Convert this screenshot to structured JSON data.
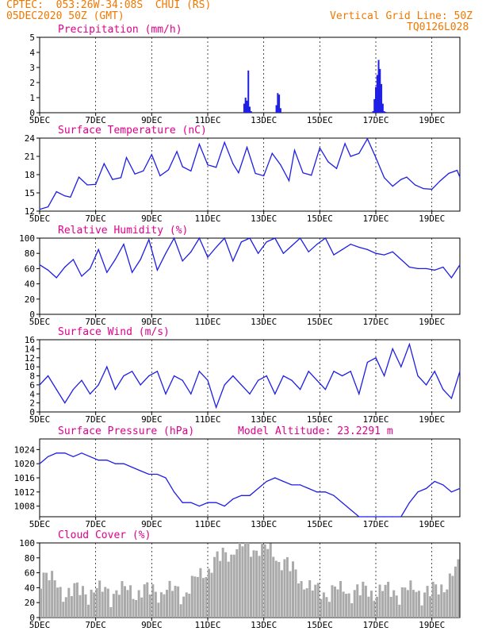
{
  "header": {
    "line1": "CPTEC:  053:26W-34:08S  CHUI (RS)",
    "line2": "05DEC2020 50Z (GMT)",
    "right1": "Vertical Grid Line: 50Z",
    "right2": "TQ0126L028"
  },
  "colors": {
    "header": "#f07800",
    "title": "#e0008c",
    "series": "#1e1ee6",
    "cloud": "#aaaaaa",
    "grid": "#000000"
  },
  "x_labels": [
    "5DEC",
    "7DEC",
    "9DEC",
    "11DEC",
    "13DEC",
    "15DEC",
    "17DEC",
    "19DEC"
  ],
  "chart_data": [
    {
      "type": "bar",
      "title": "Precipitation (mm/h)",
      "ylim": [
        0,
        5
      ],
      "yticks": [
        0,
        1,
        2,
        3,
        4,
        5
      ],
      "x_unit": "days since 05DEC",
      "x": [
        7.3,
        7.35,
        7.4,
        7.45,
        7.5,
        7.55,
        8.45,
        8.5,
        8.55,
        8.6,
        11.9,
        11.95,
        12.0,
        12.05,
        12.1,
        12.15,
        12.2,
        12.25,
        12.3,
        12.35
      ],
      "values": [
        0.6,
        1.0,
        0.8,
        2.8,
        0.4,
        0.1,
        0.5,
        1.3,
        1.2,
        0.3,
        0.1,
        0.9,
        1.7,
        2.5,
        3.5,
        2.9,
        1.9,
        0.6,
        0.1,
        0.05
      ]
    },
    {
      "type": "line",
      "title": "Surface Temperature (nC)",
      "ylim": [
        12,
        24
      ],
      "yticks": [
        12,
        15,
        18,
        21,
        24
      ],
      "x": [
        0,
        0.3,
        0.6,
        0.9,
        1.1,
        1.4,
        1.7,
        2.0,
        2.3,
        2.6,
        2.9,
        3.1,
        3.4,
        3.7,
        4.0,
        4.3,
        4.6,
        4.9,
        5.1,
        5.4,
        5.7,
        6.0,
        6.3,
        6.6,
        6.9,
        7.1,
        7.4,
        7.7,
        8.0,
        8.3,
        8.6,
        8.9,
        9.1,
        9.4,
        9.7,
        10.0,
        10.3,
        10.6,
        10.9,
        11.1,
        11.4,
        11.7,
        12.0,
        12.3,
        12.6,
        12.9,
        13.1,
        13.4,
        13.7,
        14.0,
        14.3,
        14.6,
        14.9,
        15.0
      ],
      "values": [
        12.3,
        12.7,
        15.2,
        14.5,
        14.3,
        17.6,
        16.3,
        16.4,
        19.8,
        17.2,
        17.5,
        20.8,
        18.1,
        18.6,
        21.3,
        17.8,
        18.8,
        21.8,
        19.3,
        18.6,
        23.0,
        19.6,
        19.2,
        23.3,
        19.8,
        18.3,
        22.5,
        18.2,
        17.8,
        21.5,
        19.6,
        17.0,
        22.0,
        18.3,
        17.9,
        22.4,
        20.1,
        19.0,
        23.1,
        21.0,
        21.5,
        23.9,
        20.8,
        17.5,
        16.1,
        17.2,
        17.6,
        16.3,
        15.7,
        15.6,
        17.0,
        18.2,
        18.7,
        17.6
      ]
    },
    {
      "type": "line",
      "title": "Relative Humidity (%)",
      "ylim": [
        0,
        100
      ],
      "yticks": [
        0,
        20,
        40,
        60,
        80,
        100
      ],
      "x": [
        0,
        0.3,
        0.6,
        0.9,
        1.2,
        1.5,
        1.8,
        2.1,
        2.4,
        2.7,
        3.0,
        3.3,
        3.6,
        3.9,
        4.2,
        4.5,
        4.8,
        5.1,
        5.4,
        5.7,
        6.0,
        6.3,
        6.6,
        6.9,
        7.2,
        7.5,
        7.8,
        8.1,
        8.4,
        8.7,
        9.0,
        9.3,
        9.6,
        9.9,
        10.2,
        10.5,
        10.8,
        11.1,
        11.4,
        11.7,
        12.0,
        12.3,
        12.6,
        12.9,
        13.2,
        13.5,
        13.8,
        14.1,
        14.4,
        14.7,
        15.0
      ],
      "values": [
        65,
        58,
        48,
        62,
        72,
        50,
        60,
        85,
        55,
        72,
        92,
        55,
        72,
        98,
        58,
        80,
        100,
        70,
        82,
        100,
        75,
        88,
        100,
        70,
        95,
        100,
        80,
        95,
        100,
        80,
        90,
        100,
        82,
        92,
        100,
        78,
        85,
        92,
        88,
        85,
        80,
        78,
        82,
        72,
        62,
        60,
        60,
        58,
        62,
        48,
        65
      ]
    },
    {
      "type": "line",
      "title": "Surface Wind (m/s)",
      "ylim": [
        0,
        16
      ],
      "yticks": [
        0,
        2,
        4,
        6,
        8,
        10,
        12,
        14,
        16
      ],
      "x": [
        0,
        0.3,
        0.6,
        0.9,
        1.2,
        1.5,
        1.8,
        2.1,
        2.4,
        2.7,
        3.0,
        3.3,
        3.6,
        3.9,
        4.2,
        4.5,
        4.8,
        5.1,
        5.4,
        5.7,
        6.0,
        6.3,
        6.6,
        6.9,
        7.2,
        7.5,
        7.8,
        8.1,
        8.4,
        8.7,
        9.0,
        9.3,
        9.6,
        9.9,
        10.2,
        10.5,
        10.8,
        11.1,
        11.4,
        11.7,
        12.0,
        12.3,
        12.6,
        12.9,
        13.2,
        13.5,
        13.8,
        14.1,
        14.4,
        14.7,
        15.0
      ],
      "values": [
        6,
        8,
        5,
        2,
        5,
        7,
        4,
        6,
        10,
        5,
        8,
        9,
        6,
        8,
        9,
        4,
        8,
        7,
        4,
        9,
        7,
        1,
        6,
        8,
        6,
        4,
        7,
        8,
        4,
        8,
        7,
        5,
        9,
        7,
        5,
        9,
        8,
        9,
        4,
        11,
        12,
        8,
        14,
        10,
        15,
        8,
        6,
        9,
        5,
        3,
        9
      ]
    },
    {
      "type": "line",
      "title": "Surface Pressure (hPa)",
      "annotation": "Model Altitude: 23.2291 m",
      "ylim": [
        1005,
        1027
      ],
      "yticks": [
        1008,
        1012,
        1016,
        1020,
        1024
      ],
      "x": [
        0,
        0.3,
        0.6,
        0.9,
        1.2,
        1.5,
        1.8,
        2.1,
        2.4,
        2.7,
        3.0,
        3.3,
        3.6,
        3.9,
        4.2,
        4.5,
        4.8,
        5.1,
        5.4,
        5.7,
        6.0,
        6.3,
        6.6,
        6.9,
        7.2,
        7.5,
        7.8,
        8.1,
        8.4,
        8.7,
        9.0,
        9.3,
        9.6,
        9.9,
        10.2,
        10.5,
        10.8,
        11.1,
        11.4,
        11.7,
        12.0,
        12.3,
        12.6,
        12.9,
        13.2,
        13.5,
        13.8,
        14.1,
        14.4,
        14.7,
        15.0
      ],
      "values": [
        1020,
        1022,
        1023,
        1023,
        1022,
        1023,
        1022,
        1021,
        1021,
        1020,
        1020,
        1019,
        1018,
        1017,
        1017,
        1016,
        1012,
        1009,
        1009,
        1008,
        1009,
        1009,
        1008,
        1010,
        1011,
        1011,
        1013,
        1015,
        1016,
        1015,
        1014,
        1014,
        1013,
        1012,
        1012,
        1011,
        1009,
        1007,
        1005,
        1004,
        1005,
        1004,
        1004,
        1005,
        1009,
        1012,
        1013,
        1015,
        1014,
        1012,
        1013
      ]
    },
    {
      "type": "bar",
      "title": "Cloud Cover (%)",
      "ylim": [
        0,
        100
      ],
      "yticks": [
        0,
        20,
        40,
        60,
        80,
        100
      ]
    }
  ]
}
